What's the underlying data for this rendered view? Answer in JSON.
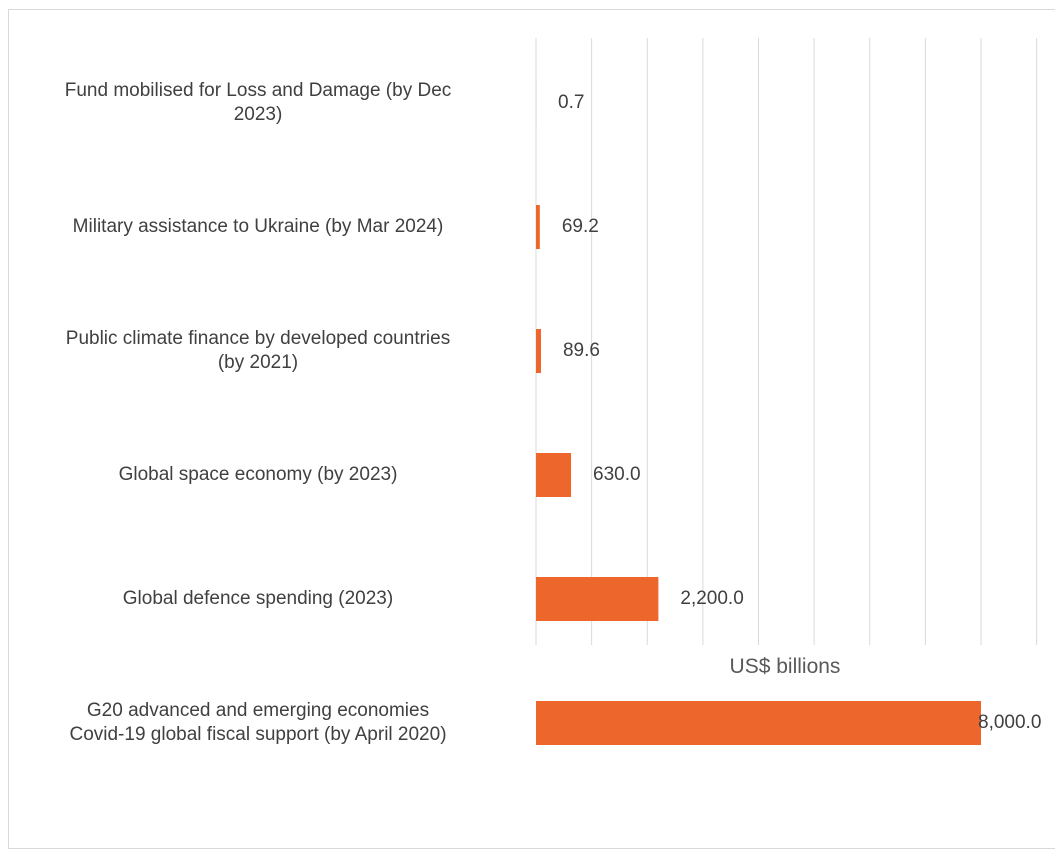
{
  "chart_data": {
    "type": "bar",
    "orientation": "horizontal",
    "categories": [
      "Fund mobilised for Loss and Damage (by Dec\n2023)",
      "Military assistance to Ukraine (by Mar 2024)",
      "Public climate finance by developed countries\n(by 2021)",
      "Global space economy (by 2023)",
      "Global defence spending (2023)",
      "G20 advanced and emerging economies\nCovid-19 global fiscal support (by April 2020)"
    ],
    "values": [
      0.7,
      69.2,
      89.6,
      630.0,
      2200.0,
      8000.0
    ],
    "value_labels": [
      "0.7",
      "69.2",
      "89.6",
      "630.0",
      "2,200.0",
      "8,000.0"
    ],
    "xlabel": "US$ billions",
    "xlim": [
      0,
      9000
    ],
    "grid": "vertical",
    "bar_color": "#ED672D"
  }
}
